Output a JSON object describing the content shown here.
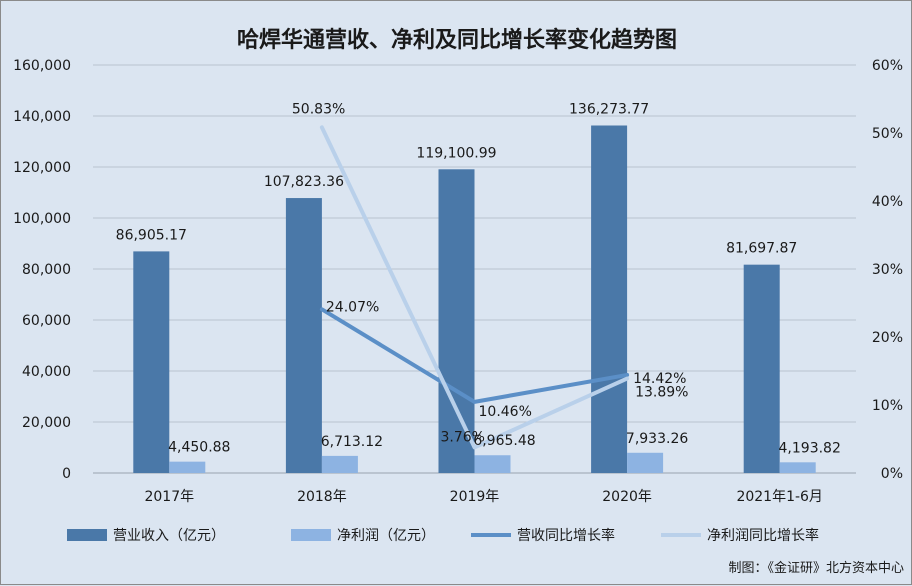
{
  "chart_data": {
    "type": "bar",
    "title": "哈焊华通营收、净利及同比增长率变化趋势图",
    "categories": [
      "2017年",
      "2018年",
      "2019年",
      "2020年",
      "2021年1-6月"
    ],
    "y_left": {
      "min": 0,
      "max": 160000,
      "step": 20000,
      "ticks": [
        "0",
        "20,000",
        "40,000",
        "60,000",
        "80,000",
        "100,000",
        "120,000",
        "140,000",
        "160,000"
      ]
    },
    "y_right": {
      "min": 0,
      "max": 60,
      "step": 10,
      "ticks": [
        "0%",
        "10%",
        "20%",
        "30%",
        "40%",
        "50%",
        "60%"
      ]
    },
    "grid": true,
    "legend_position": "bottom",
    "series": [
      {
        "name": "营业收入（亿元）",
        "kind": "bar",
        "axis": "left",
        "color": "#4a78a8",
        "values": [
          86905.17,
          107823.36,
          119100.99,
          136273.77,
          81697.87
        ],
        "labels": [
          "86,905.17",
          "107,823.36",
          "119,100.99",
          "136,273.77",
          "81,697.87"
        ]
      },
      {
        "name": "净利润（亿元）",
        "kind": "bar",
        "axis": "left",
        "color": "#8db3e2",
        "values": [
          4450.88,
          6713.12,
          6965.48,
          7933.26,
          4193.82
        ],
        "labels": [
          "4,450.88",
          "6,713.12",
          "6,965.48",
          "7,933.26",
          "4,193.82"
        ]
      },
      {
        "name": "营收同比增长率",
        "kind": "line",
        "axis": "right",
        "color": "#5b8fc7",
        "values": [
          null,
          24.07,
          10.46,
          14.42,
          null
        ],
        "labels": [
          "",
          "24.07%",
          "10.46%",
          "14.42%",
          ""
        ]
      },
      {
        "name": "净利润同比增长率",
        "kind": "line",
        "axis": "right",
        "color": "#b9d0ea",
        "values": [
          null,
          50.83,
          3.76,
          13.89,
          null
        ],
        "labels": [
          "",
          "50.83%",
          "3.76%",
          "13.89%",
          ""
        ]
      }
    ],
    "source": "制图：《金证研》北方资本中心"
  }
}
